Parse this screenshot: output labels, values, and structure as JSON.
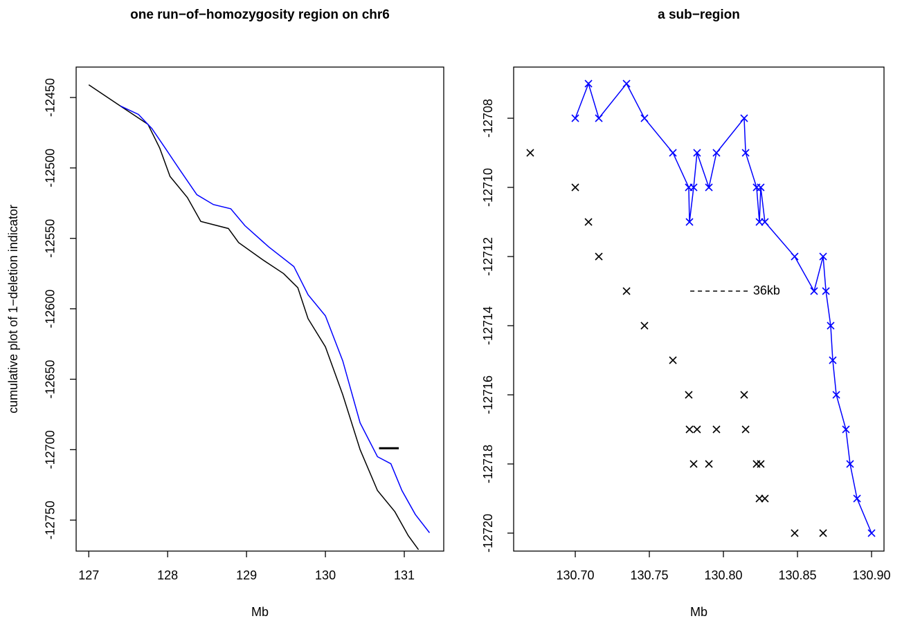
{
  "chart_data": [
    {
      "type": "line",
      "title": "one run−of−homozygosity region on chr6",
      "xlabel": "Mb",
      "ylabel": "cumulative plot of 1−deletion indicator",
      "xlim": [
        126.84,
        131.5
      ],
      "xticks": [
        127,
        128,
        129,
        130,
        131
      ],
      "ylim": [
        -12772,
        -12428.4
      ],
      "yticks": [
        -12750,
        -12700,
        -12650,
        -12600,
        -12550,
        -12500,
        -12450
      ],
      "series": [
        {
          "color": "#000000",
          "x": [
            127.0,
            127.4,
            127.75,
            127.9,
            128.03,
            128.25,
            128.42,
            128.77,
            128.9,
            129.2,
            129.47,
            129.65,
            129.78,
            130.0,
            130.22,
            130.44,
            130.66,
            130.88,
            131.05,
            131.18
          ],
          "values": [
            -12441,
            -12456,
            -12469,
            -12486,
            -12506,
            -12521,
            -12538,
            -12543,
            -12553,
            -12565,
            -12575,
            -12585,
            -12607,
            -12627,
            -12661,
            -12700,
            -12729,
            -12744,
            -12761,
            -12771
          ]
        },
        {
          "color": "#0000ff",
          "x": [
            127.4,
            127.63,
            127.8,
            127.97,
            128.15,
            128.37,
            128.58,
            128.8,
            128.98,
            129.28,
            129.6,
            129.78,
            130.0,
            130.22,
            130.44,
            130.66,
            130.83,
            130.97,
            131.14,
            131.32
          ],
          "values": [
            -12456,
            -12462,
            -12472,
            -12486,
            -12501,
            -12519,
            -12526,
            -12529,
            -12541,
            -12556,
            -12570,
            -12590,
            -12605,
            -12637,
            -12681,
            -12705,
            -12710,
            -12729,
            -12746,
            -12759
          ]
        }
      ],
      "segment": {
        "x": [
          130.68,
          130.93
        ],
        "y": [
          -12699,
          -12699
        ]
      }
    },
    {
      "type": "line",
      "title": "a sub−region",
      "xlabel": "Mb",
      "xlim": [
        130.6584,
        130.9084
      ],
      "xticks": [
        {
          "value": 130.7,
          "label": "130.70"
        },
        130.75,
        {
          "value": 130.8,
          "label": "130.80"
        },
        130.85,
        {
          "value": 130.9,
          "label": "130.90"
        }
      ],
      "ylim": [
        -12720.52,
        -12706.52
      ],
      "yticks": [
        -12720,
        -12718,
        -12716,
        -12714,
        -12712,
        -12710,
        -12708
      ],
      "series": [
        {
          "color": "#0000ff",
          "line": true,
          "marker": "x",
          "x": [
            130.7,
            130.7089,
            130.7159,
            130.7346,
            130.7467,
            130.7659,
            130.7766,
            130.7771,
            130.7799,
            130.7822,
            130.7902,
            130.7953,
            130.814,
            130.815,
            130.8224,
            130.8243,
            130.8252,
            130.828,
            130.8481,
            130.8612,
            130.8673,
            130.8692,
            130.8724,
            130.8738,
            130.8762,
            130.8827,
            130.8855,
            130.8902,
            130.9
          ],
          "values": [
            -12708,
            -12707,
            -12708,
            -12707,
            -12708,
            -12709,
            -12710,
            -12711,
            -12710,
            -12709,
            -12710,
            -12709,
            -12708,
            -12709,
            -12710,
            -12711,
            -12710,
            -12711,
            -12712,
            -12713,
            -12712,
            -12713,
            -12714,
            -12715,
            -12716,
            -12717,
            -12718,
            -12719,
            -12720
          ]
        },
        {
          "color": "#000000",
          "line": false,
          "marker": "x",
          "x": [
            130.6696,
            130.7,
            130.7089,
            130.7159,
            130.7346,
            130.7467,
            130.7659,
            130.7766,
            130.7771,
            130.7822,
            130.7799,
            130.7953,
            130.7902,
            130.814,
            130.815,
            130.8224,
            130.8252,
            130.8243,
            130.828,
            130.8481,
            130.8673
          ],
          "values": [
            -12709,
            -12710,
            -12711,
            -12712,
            -12713,
            -12714,
            -12715,
            -12716,
            -12717,
            -12717,
            -12718,
            -12717,
            -12718,
            -12716,
            -12717,
            -12718,
            -12718,
            -12719,
            -12719,
            -12720,
            -12720
          ]
        }
      ],
      "annotation": {
        "text": "36kb",
        "x": 130.82,
        "y": -12713,
        "line_x": [
          130.7776,
          130.8164
        ]
      }
    }
  ]
}
